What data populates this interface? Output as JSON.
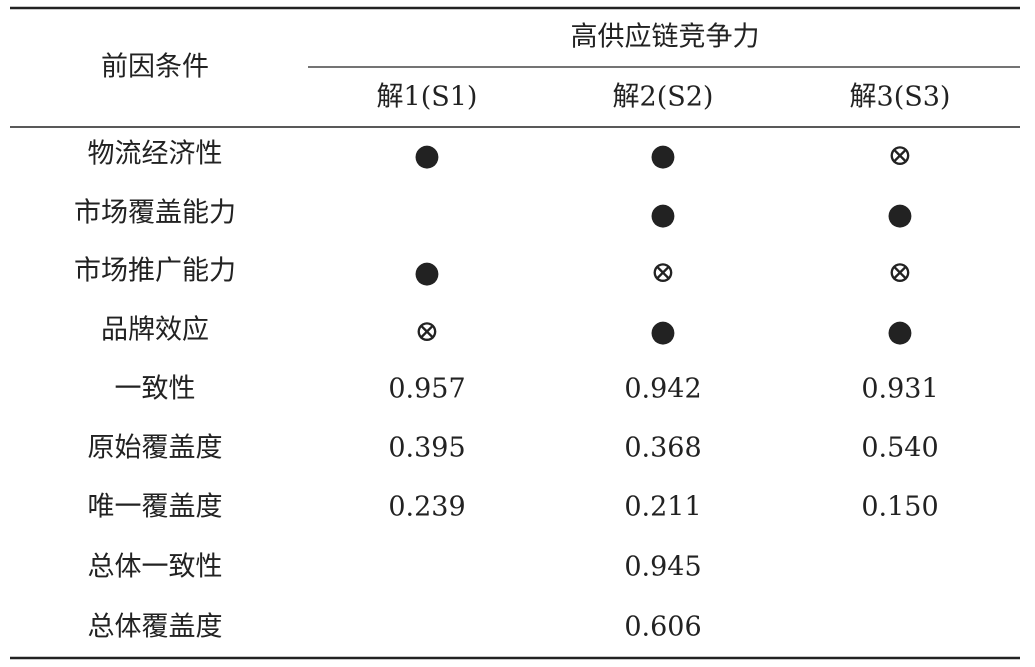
{
  "table": {
    "header": {
      "row_label": "前因条件",
      "group": "高供应链竞争力",
      "columns": [
        "解1(S1)",
        "解2(S2)",
        "解3(S3)"
      ]
    },
    "rows": [
      [
        "物流经济性",
        "●",
        "●",
        "⊗"
      ],
      [
        "市场覆盖能力",
        null,
        "●",
        "●"
      ],
      [
        "市场推广能力",
        "●",
        "⊗",
        "⊗"
      ],
      [
        "品牌效应",
        "⊗",
        "●",
        "●"
      ],
      [
        "一致性",
        "0.957",
        "0.942",
        "0.931"
      ],
      [
        "原始覆盖度",
        "0.395",
        "0.368",
        "0.540"
      ],
      [
        "唯一覆盖度",
        "0.239",
        "0.211",
        "0.150"
      ],
      [
        "总体一致性",
        null,
        "0.945",
        null
      ],
      [
        "总体覆盖度",
        null,
        "0.606",
        null
      ]
    ]
  }
}
